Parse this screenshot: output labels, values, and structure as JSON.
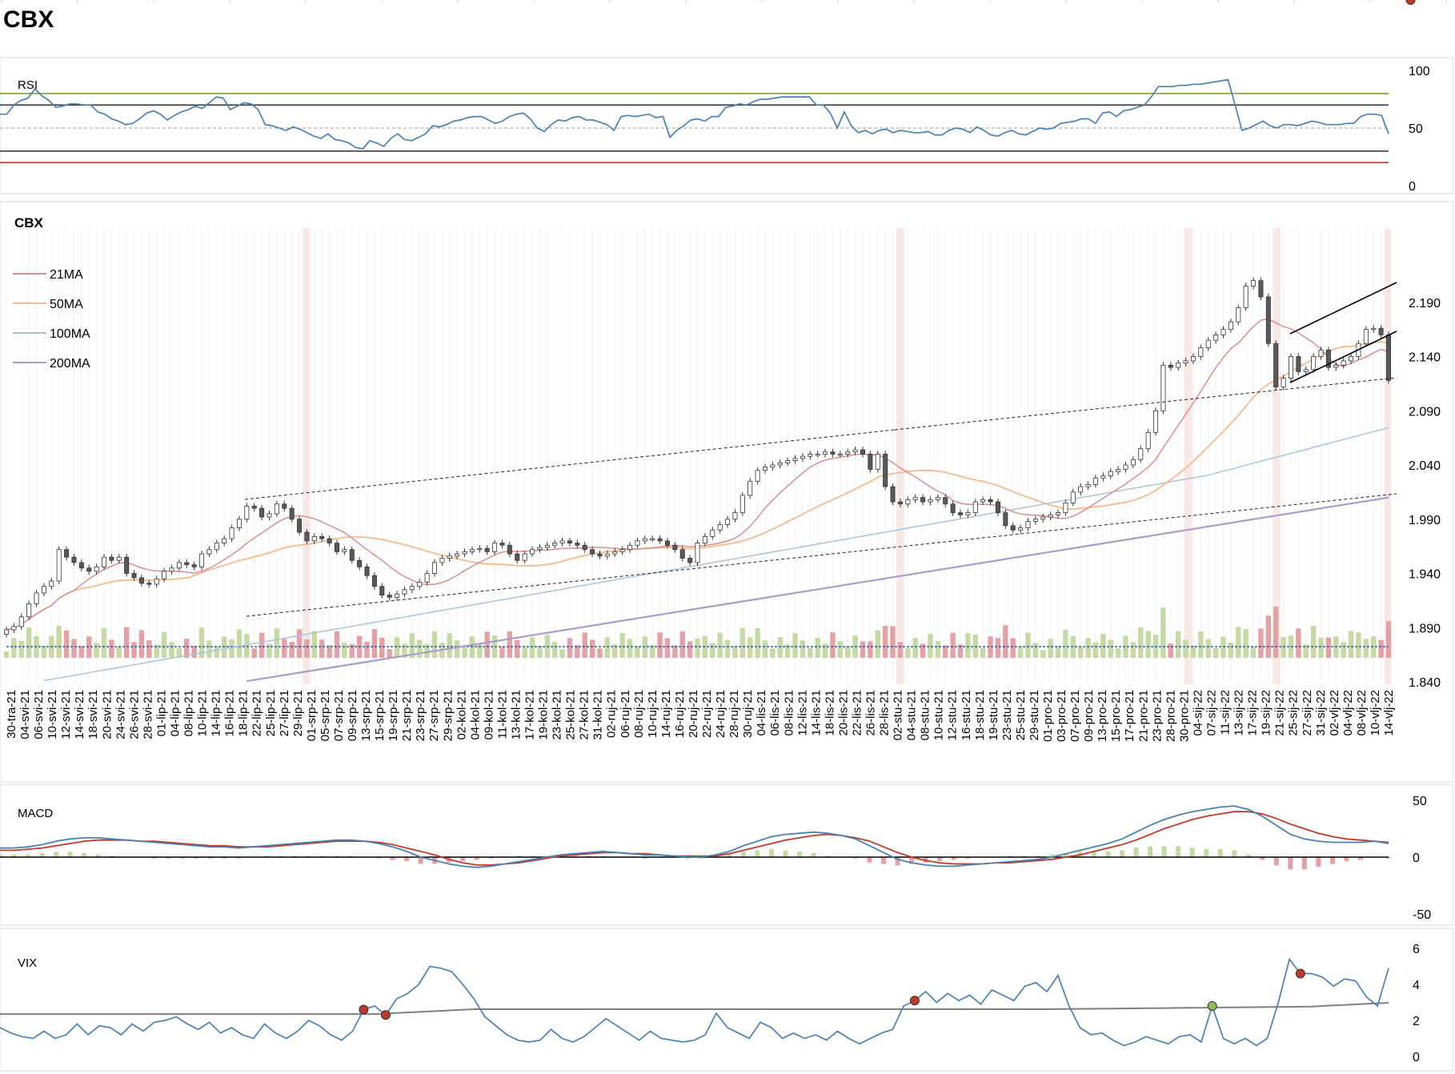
{
  "title": "CBX",
  "colors": {
    "candle_up": "#ffffff",
    "candle_down": "#595959",
    "ma21": "#d98e8e",
    "ma50": "#f5b98a",
    "ma100": "#a9c4dc",
    "ma200": "#a99cc9",
    "vol_up": "#c5d9a4",
    "vol_down": "#e3a0a5",
    "rsi_line": "#4a7fb5",
    "rsi_over": "#7aa23a",
    "rsi_under": "#c0392b",
    "macd_line": "#4a7fb5",
    "signal_line": "#c0392b",
    "vix_line": "#4a7fb5",
    "vix_avg": "#7f7f7f",
    "dot_red": "#c0392b",
    "dot_green": "#8fbf5a"
  },
  "chart_data": [
    {
      "type": "line",
      "panel": "RSI",
      "title": "RSI",
      "yticks": [
        "100",
        "50",
        "0"
      ],
      "ylim": [
        0,
        100
      ],
      "levels": [
        80,
        70,
        50,
        30,
        20
      ],
      "values": [
        62,
        62,
        70,
        74,
        76,
        84,
        78,
        74,
        68,
        69,
        71,
        71,
        70,
        70,
        64,
        62,
        58,
        56,
        53,
        54,
        58,
        63,
        65,
        62,
        57,
        61,
        64,
        66,
        69,
        67,
        72,
        77,
        76,
        66,
        69,
        72,
        71,
        66,
        53,
        52,
        50,
        48,
        51,
        49,
        46,
        43,
        41,
        45,
        40,
        39,
        37,
        33,
        32,
        39,
        37,
        34,
        41,
        45,
        40,
        39,
        42,
        45,
        52,
        51,
        53,
        56,
        57,
        59,
        60,
        60,
        57,
        54,
        56,
        60,
        62,
        63,
        58,
        50,
        47,
        53,
        57,
        56,
        59,
        60,
        57,
        57,
        55,
        53,
        48,
        60,
        61,
        60,
        61,
        62,
        59,
        60,
        42,
        48,
        52,
        57,
        58,
        56,
        60,
        60,
        68,
        69,
        71,
        70,
        73,
        75,
        75,
        76,
        77,
        77,
        77,
        77,
        77,
        70,
        70,
        63,
        50,
        64,
        52,
        46,
        48,
        45,
        48,
        49,
        46,
        48,
        47,
        46,
        46,
        47,
        44,
        44,
        48,
        50,
        49,
        46,
        51,
        48,
        44,
        43,
        46,
        48,
        45,
        44,
        47,
        50,
        49,
        50,
        54,
        55,
        56,
        58,
        58,
        54,
        63,
        64,
        60,
        65,
        66,
        68,
        70,
        77,
        86,
        86,
        86,
        87,
        87,
        88,
        88,
        89,
        90,
        91,
        92,
        70,
        48,
        50,
        53,
        56,
        52,
        50,
        53,
        53,
        52,
        54,
        56,
        55,
        53,
        53,
        53,
        54,
        54,
        60,
        62,
        62,
        61,
        45
      ],
      "x_start": "30-tra-21"
    },
    {
      "type": "candlestick",
      "panel": "CBX",
      "title": "CBX",
      "legend": [
        "21MA",
        "50MA",
        "100MA",
        "200MA"
      ],
      "yticks": [
        "2.190",
        "2.140",
        "2.090",
        "2.040",
        "1.990",
        "1.940",
        "1.890",
        "1.840"
      ],
      "ylim": [
        1.84,
        2.24
      ],
      "xticks": [
        "30-tra-21",
        "04-svi-21",
        "06-svi-21",
        "10-svi-21",
        "12-svi-21",
        "14-svi-21",
        "18-svi-21",
        "20-svi-21",
        "24-svi-21",
        "26-svi-21",
        "28-svi-21",
        "01-lip-21",
        "04-lip-21",
        "08-lip-21",
        "10-lip-21",
        "14-lip-21",
        "16-lip-21",
        "18-lip-21",
        "22-lip-21",
        "25-lip-21",
        "27-lip-21",
        "29-lip-21",
        "01-srp-21",
        "05-srp-21",
        "07-srp-21",
        "09-srp-21",
        "13-srp-21",
        "15-srp-21",
        "19-srp-21",
        "21-srp-21",
        "23-srp-21",
        "27-srp-21",
        "29-srp-21",
        "02-kol-21",
        "04-kol-21",
        "09-kol-21",
        "11-kol-21",
        "13-kol-21",
        "17-kol-21",
        "19-kol-21",
        "23-kol-21",
        "25-kol-21",
        "27-kol-21",
        "31-kol-21",
        "02-ruj-21",
        "06-ruj-21",
        "08-ruj-21",
        "10-ruj-21",
        "14-ruj-21",
        "16-ruj-21",
        "20-ruj-21",
        "22-ruj-21",
        "24-ruj-21",
        "28-ruj-21",
        "30-ruj-21",
        "04-lis-21",
        "06-lis-21",
        "08-lis-21",
        "12-lis-21",
        "14-lis-21",
        "18-lis-21",
        "20-lis-21",
        "22-lis-21",
        "26-lis-21",
        "28-lis-21",
        "02-stu-21",
        "04-stu-21",
        "08-stu-21",
        "10-stu-21",
        "12-stu-21",
        "16-stu-21",
        "18-stu-21",
        "19-stu-21",
        "23-stu-21",
        "25-stu-21",
        "29-stu-21",
        "01-pro-21",
        "03-pro-21",
        "07-pro-21",
        "09-pro-21",
        "13-pro-21",
        "15-pro-21",
        "17-pro-21",
        "21-pro-21",
        "23-pro-21",
        "28-pro-21",
        "30-pro-21",
        "04-sij-22",
        "07-sij-22",
        "11-sij-22",
        "13-sij-22",
        "17-sij-22",
        "19-sij-22",
        "21-sij-22",
        "25-sij-22",
        "27-sij-22",
        "31-sij-22",
        "02-vlj-22",
        "04-vlj-22",
        "08-vlj-22",
        "10-vlj-22",
        "14-vlj-22"
      ],
      "close": [
        1.888,
        1.891,
        1.9,
        1.912,
        1.922,
        1.928,
        1.933,
        1.962,
        1.955,
        1.95,
        1.945,
        1.942,
        1.946,
        1.955,
        1.952,
        1.955,
        1.94,
        1.936,
        1.931,
        1.93,
        1.935,
        1.942,
        1.945,
        1.95,
        1.948,
        1.946,
        1.958,
        1.962,
        1.968,
        1.972,
        1.982,
        1.99,
        2.002,
        2.0,
        1.992,
        1.995,
        2.004,
        2.0,
        1.99,
        1.978,
        1.97,
        1.974,
        1.972,
        1.968,
        1.96,
        1.962,
        1.952,
        1.946,
        1.938,
        1.928,
        1.92,
        1.918,
        1.921,
        1.925,
        1.928,
        1.932,
        1.94,
        1.95,
        1.954,
        1.956,
        1.958,
        1.96,
        1.962,
        1.963,
        1.96,
        1.968,
        1.966,
        1.958,
        1.952,
        1.958,
        1.962,
        1.964,
        1.966,
        1.968,
        1.97,
        1.968,
        1.966,
        1.962,
        1.958,
        1.956,
        1.958,
        1.96,
        1.962,
        1.966,
        1.97,
        1.972,
        1.972,
        1.97,
        1.966,
        1.962,
        1.954,
        1.95,
        1.968,
        1.974,
        1.98,
        1.985,
        1.99,
        1.996,
        2.012,
        2.025,
        2.035,
        2.038,
        2.04,
        2.042,
        2.044,
        2.046,
        2.048,
        2.05,
        2.05,
        2.052,
        2.05,
        2.05,
        2.052,
        2.054,
        2.05,
        2.036,
        2.05,
        2.02,
        2.006,
        2.004,
        2.008,
        2.01,
        2.006,
        2.008,
        2.01,
        2.004,
        1.996,
        1.994,
        1.996,
        2.006,
        2.008,
        2.006,
        1.996,
        1.984,
        1.98,
        1.982,
        1.988,
        1.99,
        1.992,
        1.994,
        1.996,
        2.005,
        2.015,
        2.02,
        2.022,
        2.028,
        2.03,
        2.034,
        2.036,
        2.04,
        2.045,
        2.055,
        2.07,
        2.09,
        2.132,
        2.13,
        2.134,
        2.136,
        2.14,
        2.148,
        2.155,
        2.16,
        2.165,
        2.172,
        2.185,
        2.205,
        2.21,
        2.195,
        2.152,
        2.112,
        2.12,
        2.14,
        2.126,
        2.128,
        2.14,
        2.146,
        2.13,
        2.132,
        2.136,
        2.14,
        2.152,
        2.165,
        2.166,
        2.16,
        2.118
      ]
    },
    {
      "type": "line",
      "panel": "MACD",
      "title": "MACD",
      "yticks": [
        "50",
        "0",
        "-50"
      ],
      "ylim": [
        -50,
        50
      ],
      "macd": [
        8,
        8,
        9,
        11,
        14,
        16,
        17,
        17,
        16,
        15,
        14,
        13,
        12,
        11,
        10,
        9,
        9,
        8,
        9,
        10,
        11,
        12,
        13,
        14,
        15,
        15,
        14,
        12,
        9,
        5,
        0,
        -3,
        -6,
        -8,
        -9,
        -8,
        -6,
        -4,
        -2,
        0,
        2,
        3,
        4,
        5,
        4,
        3,
        2,
        2,
        1,
        0,
        0,
        2,
        5,
        10,
        14,
        18,
        20,
        21,
        22,
        21,
        19,
        16,
        10,
        4,
        -2,
        -5,
        -7,
        -8,
        -8,
        -7,
        -6,
        -5,
        -4,
        -3,
        -2,
        0,
        3,
        6,
        9,
        12,
        16,
        22,
        28,
        33,
        37,
        40,
        42,
        44,
        45,
        42,
        36,
        28,
        20,
        16,
        14,
        13,
        13,
        13,
        14,
        12
      ],
      "signal": [
        6,
        6,
        7,
        8,
        10,
        12,
        14,
        15,
        15,
        15,
        14,
        14,
        13,
        12,
        11,
        10,
        10,
        9,
        9,
        9,
        10,
        11,
        12,
        13,
        14,
        14,
        14,
        13,
        11,
        8,
        5,
        2,
        -2,
        -5,
        -7,
        -7,
        -6,
        -5,
        -3,
        -1,
        1,
        2,
        3,
        4,
        4,
        3,
        3,
        2,
        1,
        1,
        1,
        1,
        3,
        6,
        9,
        12,
        15,
        17,
        19,
        20,
        19,
        17,
        14,
        9,
        4,
        0,
        -3,
        -5,
        -6,
        -6,
        -6,
        -5,
        -5,
        -4,
        -3,
        -2,
        0,
        2,
        5,
        8,
        11,
        15,
        20,
        25,
        29,
        33,
        36,
        38,
        40,
        40,
        38,
        34,
        29,
        25,
        21,
        18,
        16,
        15,
        14,
        13
      ]
    },
    {
      "type": "line",
      "panel": "VIX",
      "title": "VIX",
      "yticks": [
        "6",
        "4",
        "2",
        "0"
      ],
      "ylim": [
        0,
        6
      ],
      "values": [
        1.6,
        1.3,
        1.1,
        1.0,
        1.4,
        1.0,
        1.2,
        1.8,
        1.2,
        1.7,
        1.6,
        1.2,
        1.8,
        1.4,
        1.9,
        2.0,
        2.2,
        1.8,
        1.5,
        1.9,
        1.3,
        1.6,
        1.2,
        1.0,
        1.8,
        1.3,
        1.0,
        1.4,
        2.0,
        1.7,
        1.2,
        0.9,
        1.4,
        2.6,
        2.8,
        2.3,
        3.2,
        3.5,
        4.0,
        5.0,
        4.9,
        4.7,
        4.0,
        3.2,
        2.2,
        1.7,
        1.2,
        0.9,
        0.8,
        0.9,
        1.5,
        1.0,
        0.8,
        1.1,
        1.6,
        2.1,
        1.7,
        1.3,
        0.9,
        1.4,
        1.0,
        0.9,
        0.8,
        0.9,
        1.2,
        2.4,
        1.6,
        1.3,
        1.0,
        1.9,
        1.6,
        1.0,
        1.3,
        1.0,
        1.2,
        0.9,
        1.4,
        1.0,
        0.7,
        1.0,
        1.3,
        1.5,
        2.8,
        3.1,
        3.6,
        3.0,
        3.5,
        3.1,
        3.4,
        2.9,
        3.7,
        3.4,
        3.1,
        3.9,
        4.1,
        3.6,
        4.5,
        2.8,
        1.6,
        1.2,
        1.3,
        0.9,
        0.6,
        0.8,
        1.1,
        0.9,
        0.7,
        1.1,
        1.2,
        0.8,
        2.8,
        1.0,
        0.7,
        1.0,
        0.6,
        1.0,
        3.0,
        5.4,
        4.6,
        4.6,
        4.4,
        3.9,
        4.3,
        4.2,
        3.3,
        2.8,
        4.9
      ]
    }
  ]
}
